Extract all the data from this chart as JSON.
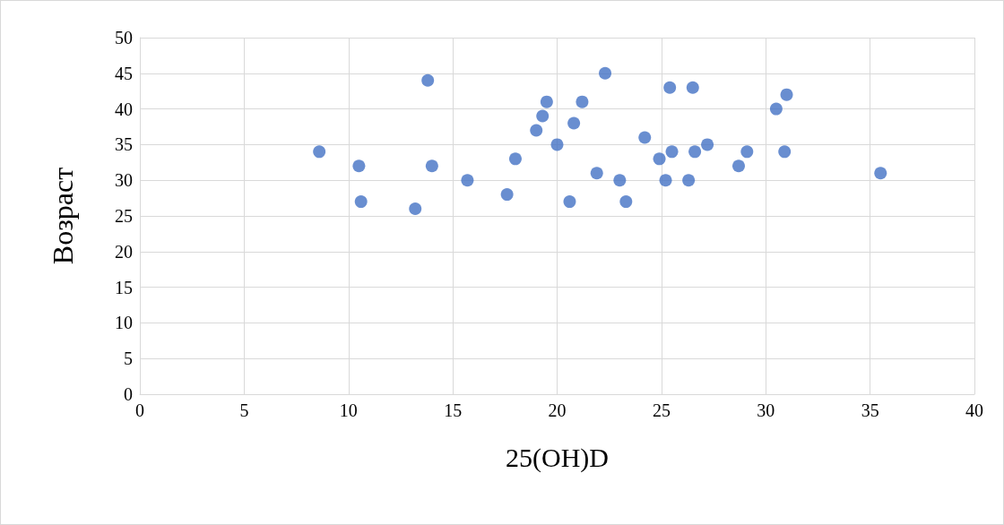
{
  "chart_data": {
    "type": "scatter",
    "xlabel": "25(OH)D",
    "ylabel": "Возраст",
    "x": [
      8.6,
      10.5,
      10.6,
      13.2,
      13.8,
      14.0,
      15.7,
      17.6,
      18.0,
      19.0,
      19.3,
      19.5,
      20.0,
      20.6,
      20.8,
      21.2,
      21.9,
      22.3,
      23.0,
      23.3,
      24.2,
      24.9,
      25.2,
      25.4,
      25.5,
      26.3,
      26.5,
      26.6,
      27.2,
      28.7,
      29.1,
      30.5,
      30.9,
      31.0,
      35.5
    ],
    "values": [
      34,
      32,
      27,
      26,
      44,
      32,
      30,
      28,
      33,
      37,
      39,
      41,
      35,
      27,
      38,
      41,
      31,
      45,
      30,
      27,
      36,
      33,
      30,
      43,
      34,
      30,
      43,
      34,
      35,
      32,
      34,
      40,
      34,
      42,
      31
    ],
    "color": "#4472c4",
    "marker": "circle",
    "xlim": [
      0,
      40
    ],
    "xticks": [
      0,
      5,
      10,
      15,
      20,
      25,
      30,
      35,
      40
    ],
    "ylim": [
      0,
      50
    ],
    "yticks": [
      0,
      5,
      10,
      15,
      20,
      25,
      30,
      35,
      40,
      45,
      50
    ],
    "grid": true
  }
}
